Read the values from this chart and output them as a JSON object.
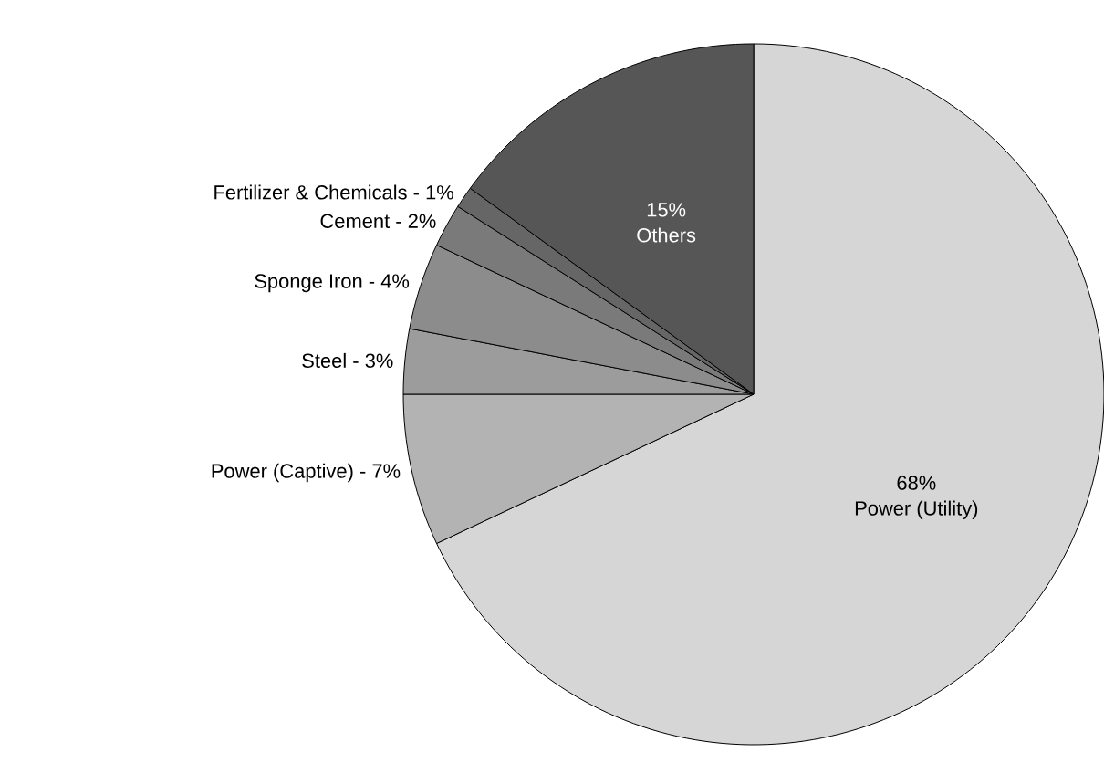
{
  "chart_data": {
    "type": "pie",
    "categories": [
      "Power (Utility)",
      "Power (Captive) -",
      "Steel -",
      "Sponge Iron -",
      "Cement -",
      "Fertilizer & Chemicals -",
      "Others"
    ],
    "values": [
      68,
      7,
      3,
      4,
      2,
      1,
      15
    ],
    "colors": [
      "#d6d6d6",
      "#b3b3b3",
      "#9c9c9c",
      "#8c8c8c",
      "#7a7a7a",
      "#666666",
      "#565656"
    ],
    "value_labels": [
      "68%",
      "7%",
      "3%",
      "4%",
      "2%",
      "1%",
      "15%"
    ]
  }
}
